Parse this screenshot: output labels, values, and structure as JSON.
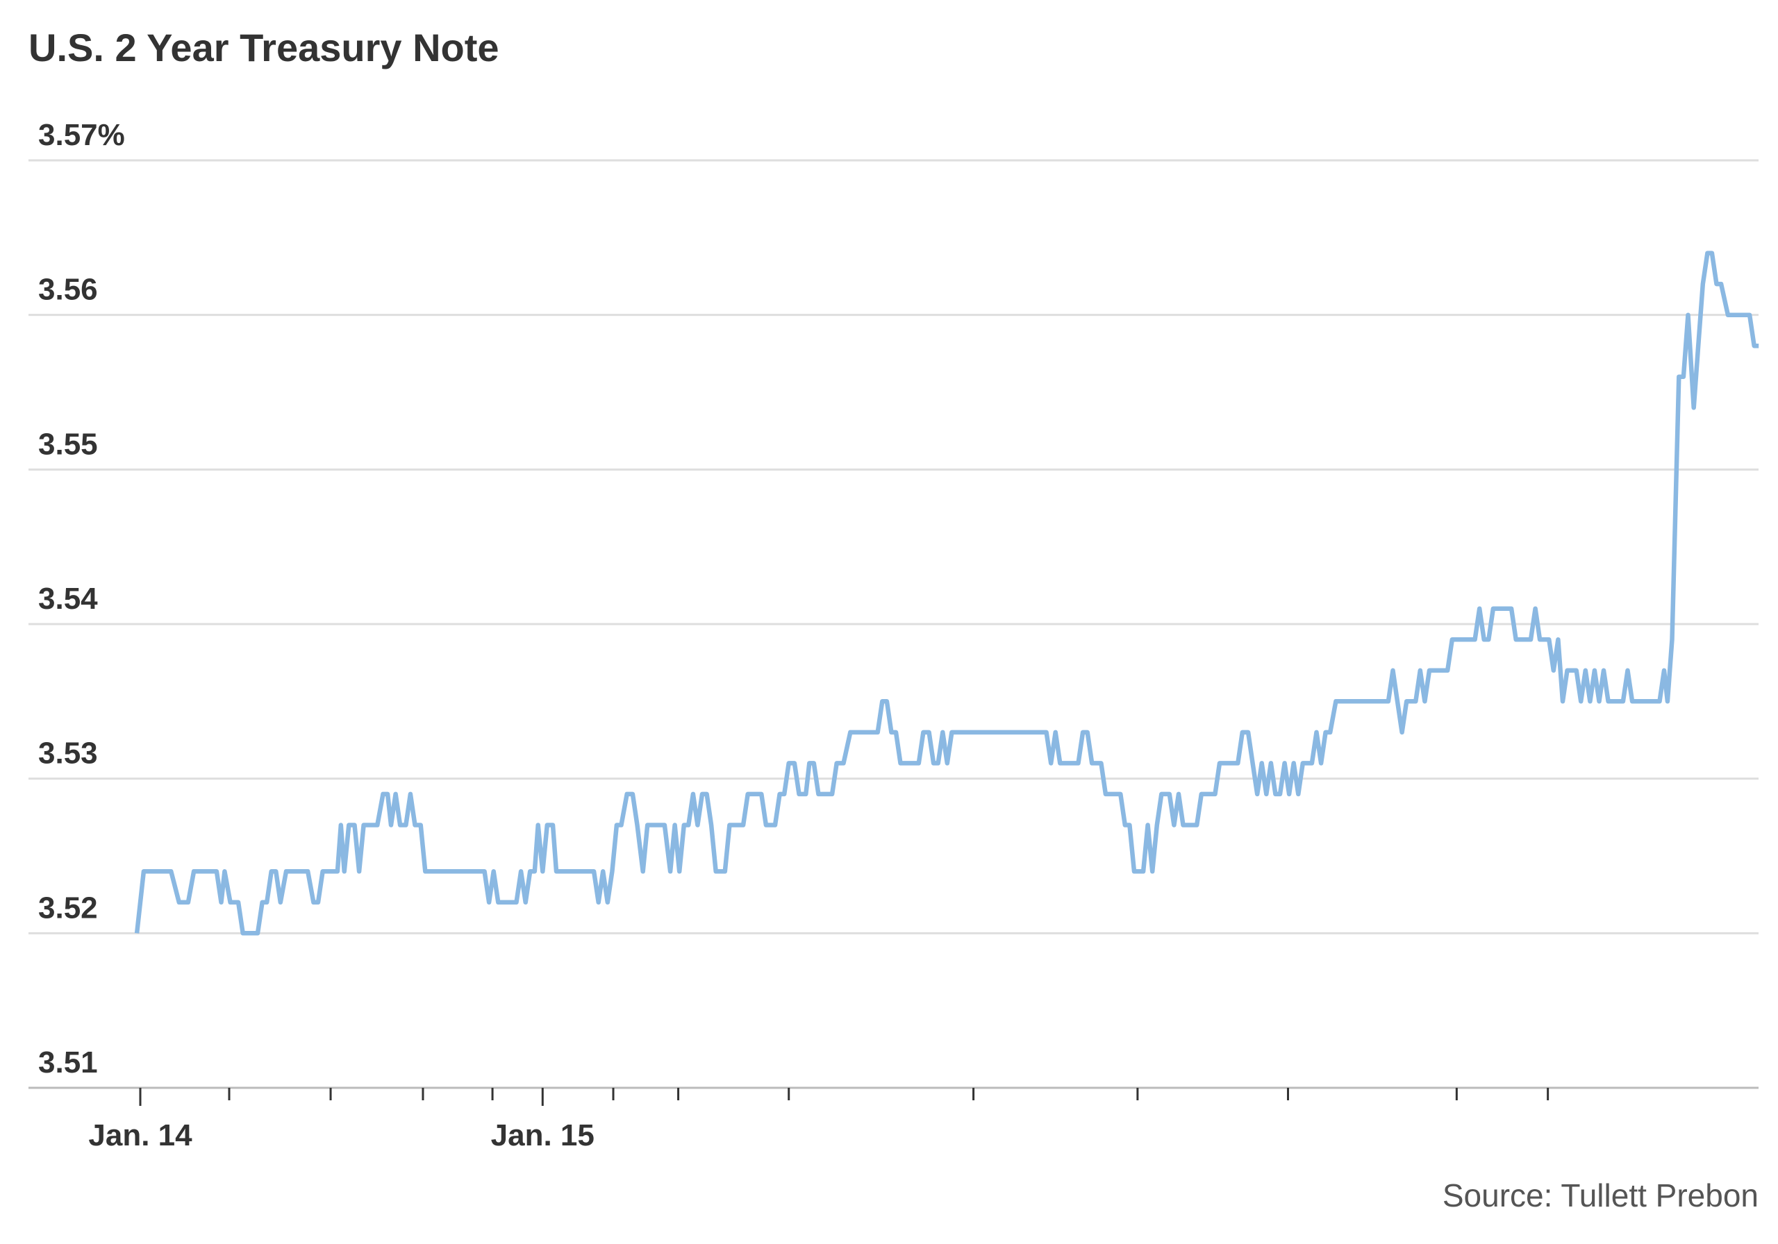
{
  "chart_data": {
    "type": "line",
    "title": "U.S. 2 Year Treasury Note",
    "source": "Source: Tullett Prebon",
    "xlabel": "",
    "ylabel": "",
    "ylim": [
      3.51,
      3.57
    ],
    "yticks": [
      {
        "value": 3.57,
        "label": "3.57%"
      },
      {
        "value": 3.56,
        "label": "3.56"
      },
      {
        "value": 3.55,
        "label": "3.55"
      },
      {
        "value": 3.54,
        "label": "3.54"
      },
      {
        "value": 3.53,
        "label": "3.53"
      },
      {
        "value": 3.52,
        "label": "3.52"
      },
      {
        "value": 3.51,
        "label": "3.51"
      }
    ],
    "x_units": "axis time units (Jan. 14 = 0, Jan. 15 = 353)",
    "xlim": [
      -98,
      1420
    ],
    "xticks": [
      {
        "value": 0,
        "label": "Jan. 14",
        "major": true
      },
      {
        "value": 78,
        "label": "",
        "major": false
      },
      {
        "value": 167,
        "label": "",
        "major": false
      },
      {
        "value": 248,
        "label": "",
        "major": false
      },
      {
        "value": 309,
        "label": "",
        "major": false
      },
      {
        "value": 353,
        "label": "Jan. 15",
        "major": true
      },
      {
        "value": 415,
        "label": "",
        "major": false
      },
      {
        "value": 472,
        "label": "",
        "major": false
      },
      {
        "value": 569,
        "label": "",
        "major": false
      },
      {
        "value": 731,
        "label": "",
        "major": false
      },
      {
        "value": 875,
        "label": "",
        "major": false
      },
      {
        "value": 1007,
        "label": "",
        "major": false
      },
      {
        "value": 1155,
        "label": "",
        "major": false
      },
      {
        "value": 1235,
        "label": "",
        "major": false
      }
    ],
    "grid": true,
    "series": [
      {
        "name": "U.S. 2 Year Treasury Note yield",
        "color": "#8ab8e2",
        "points": [
          [
            -3,
            3.52
          ],
          [
            3,
            3.524
          ],
          [
            27,
            3.524
          ],
          [
            34,
            3.522
          ],
          [
            42,
            3.522
          ],
          [
            47,
            3.524
          ],
          [
            67,
            3.524
          ],
          [
            71,
            3.522
          ],
          [
            74,
            3.524
          ],
          [
            79,
            3.522
          ],
          [
            86,
            3.522
          ],
          [
            90,
            3.52
          ],
          [
            103,
            3.52
          ],
          [
            107,
            3.522
          ],
          [
            111,
            3.522
          ],
          [
            115,
            3.524
          ],
          [
            119,
            3.524
          ],
          [
            123,
            3.522
          ],
          [
            128,
            3.524
          ],
          [
            147,
            3.524
          ],
          [
            152,
            3.522
          ],
          [
            156,
            3.522
          ],
          [
            160,
            3.524
          ],
          [
            173,
            3.524
          ],
          [
            176,
            3.527
          ],
          [
            179,
            3.524
          ],
          [
            183,
            3.527
          ],
          [
            188,
            3.527
          ],
          [
            192,
            3.524
          ],
          [
            196,
            3.527
          ],
          [
            208,
            3.527
          ],
          [
            213,
            3.529
          ],
          [
            217,
            3.529
          ],
          [
            220,
            3.527
          ],
          [
            224,
            3.529
          ],
          [
            228,
            3.527
          ],
          [
            233,
            3.527
          ],
          [
            237,
            3.529
          ],
          [
            241,
            3.527
          ],
          [
            246,
            3.527
          ],
          [
            250,
            3.524
          ],
          [
            302,
            3.524
          ],
          [
            306,
            3.522
          ],
          [
            310,
            3.524
          ],
          [
            314,
            3.522
          ],
          [
            330,
            3.522
          ],
          [
            334,
            3.524
          ],
          [
            338,
            3.522
          ],
          [
            342,
            3.524
          ],
          [
            346,
            3.524
          ],
          [
            349,
            3.527
          ],
          [
            353,
            3.524
          ],
          [
            357,
            3.527
          ],
          [
            362,
            3.527
          ],
          [
            365,
            3.524
          ],
          [
            398,
            3.524
          ],
          [
            402,
            3.522
          ],
          [
            406,
            3.524
          ],
          [
            410,
            3.522
          ],
          [
            414,
            3.524
          ],
          [
            418,
            3.527
          ],
          [
            422,
            3.527
          ],
          [
            427,
            3.529
          ],
          [
            432,
            3.529
          ],
          [
            436,
            3.527
          ],
          [
            441,
            3.524
          ],
          [
            445,
            3.527
          ],
          [
            460,
            3.527
          ],
          [
            465,
            3.524
          ],
          [
            469,
            3.527
          ],
          [
            473,
            3.524
          ],
          [
            477,
            3.527
          ],
          [
            481,
            3.527
          ],
          [
            485,
            3.529
          ],
          [
            489,
            3.527
          ],
          [
            493,
            3.529
          ],
          [
            497,
            3.529
          ],
          [
            501,
            3.527
          ],
          [
            505,
            3.524
          ],
          [
            513,
            3.524
          ],
          [
            517,
            3.527
          ],
          [
            529,
            3.527
          ],
          [
            533,
            3.529
          ],
          [
            545,
            3.529
          ],
          [
            549,
            3.527
          ],
          [
            557,
            3.527
          ],
          [
            561,
            3.529
          ],
          [
            565,
            3.529
          ],
          [
            569,
            3.531
          ],
          [
            574,
            3.531
          ],
          [
            578,
            3.529
          ],
          [
            584,
            3.529
          ],
          [
            587,
            3.531
          ],
          [
            591,
            3.531
          ],
          [
            595,
            3.529
          ],
          [
            607,
            3.529
          ],
          [
            611,
            3.531
          ],
          [
            617,
            3.531
          ],
          [
            623,
            3.533
          ],
          [
            647,
            3.533
          ],
          [
            651,
            3.535
          ],
          [
            655,
            3.535
          ],
          [
            659,
            3.533
          ],
          [
            663,
            3.533
          ],
          [
            667,
            3.531
          ],
          [
            683,
            3.531
          ],
          [
            687,
            3.533
          ],
          [
            692,
            3.533
          ],
          [
            696,
            3.531
          ],
          [
            700,
            3.531
          ],
          [
            704,
            3.533
          ],
          [
            708,
            3.531
          ],
          [
            712,
            3.533
          ],
          [
            795,
            3.533
          ],
          [
            799,
            3.531
          ],
          [
            803,
            3.533
          ],
          [
            807,
            3.531
          ],
          [
            823,
            3.531
          ],
          [
            827,
            3.533
          ],
          [
            831,
            3.533
          ],
          [
            835,
            3.531
          ],
          [
            843,
            3.531
          ],
          [
            847,
            3.529
          ],
          [
            860,
            3.529
          ],
          [
            864,
            3.527
          ],
          [
            868,
            3.527
          ],
          [
            872,
            3.524
          ],
          [
            880,
            3.524
          ],
          [
            884,
            3.527
          ],
          [
            888,
            3.524
          ],
          [
            892,
            3.527
          ],
          [
            896,
            3.529
          ],
          [
            903,
            3.529
          ],
          [
            907,
            3.527
          ],
          [
            911,
            3.529
          ],
          [
            915,
            3.527
          ],
          [
            927,
            3.527
          ],
          [
            931,
            3.529
          ],
          [
            943,
            3.529
          ],
          [
            947,
            3.531
          ],
          [
            963,
            3.531
          ],
          [
            967,
            3.533
          ],
          [
            972,
            3.533
          ],
          [
            976,
            3.531
          ],
          [
            980,
            3.529
          ],
          [
            984,
            3.531
          ],
          [
            988,
            3.529
          ],
          [
            992,
            3.531
          ],
          [
            996,
            3.529
          ],
          [
            1000,
            3.529
          ],
          [
            1004,
            3.531
          ],
          [
            1008,
            3.529
          ],
          [
            1012,
            3.531
          ],
          [
            1016,
            3.529
          ],
          [
            1020,
            3.531
          ],
          [
            1028,
            3.531
          ],
          [
            1032,
            3.533
          ],
          [
            1036,
            3.531
          ],
          [
            1040,
            3.533
          ],
          [
            1044,
            3.533
          ],
          [
            1049,
            3.535
          ],
          [
            1095,
            3.535
          ],
          [
            1099,
            3.537
          ],
          [
            1103,
            3.535
          ],
          [
            1107,
            3.533
          ],
          [
            1111,
            3.535
          ],
          [
            1119,
            3.535
          ],
          [
            1123,
            3.537
          ],
          [
            1127,
            3.535
          ],
          [
            1131,
            3.537
          ],
          [
            1147,
            3.537
          ],
          [
            1151,
            3.539
          ],
          [
            1171,
            3.539
          ],
          [
            1175,
            3.541
          ],
          [
            1179,
            3.539
          ],
          [
            1183,
            3.539
          ],
          [
            1187,
            3.541
          ],
          [
            1203,
            3.541
          ],
          [
            1207,
            3.539
          ],
          [
            1220,
            3.539
          ],
          [
            1224,
            3.541
          ],
          [
            1228,
            3.539
          ],
          [
            1236,
            3.539
          ],
          [
            1240,
            3.537
          ],
          [
            1244,
            3.539
          ],
          [
            1248,
            3.535
          ],
          [
            1252,
            3.537
          ],
          [
            1260,
            3.537
          ],
          [
            1264,
            3.535
          ],
          [
            1268,
            3.537
          ],
          [
            1272,
            3.535
          ],
          [
            1276,
            3.537
          ],
          [
            1280,
            3.535
          ],
          [
            1284,
            3.537
          ],
          [
            1288,
            3.535
          ],
          [
            1301,
            3.535
          ],
          [
            1305,
            3.537
          ],
          [
            1309,
            3.535
          ],
          [
            1333,
            3.535
          ],
          [
            1337,
            3.537
          ],
          [
            1340,
            3.535
          ],
          [
            1344,
            3.539
          ],
          [
            1350,
            3.556
          ],
          [
            1354,
            3.556
          ],
          [
            1358,
            3.56
          ],
          [
            1363,
            3.554
          ],
          [
            1367,
            3.558
          ],
          [
            1371,
            3.562
          ],
          [
            1375,
            3.564
          ],
          [
            1379,
            3.564
          ],
          [
            1383,
            3.562
          ],
          [
            1387,
            3.562
          ],
          [
            1393,
            3.56
          ],
          [
            1412,
            3.56
          ],
          [
            1416,
            3.558
          ],
          [
            1420,
            3.558
          ]
        ]
      }
    ]
  }
}
